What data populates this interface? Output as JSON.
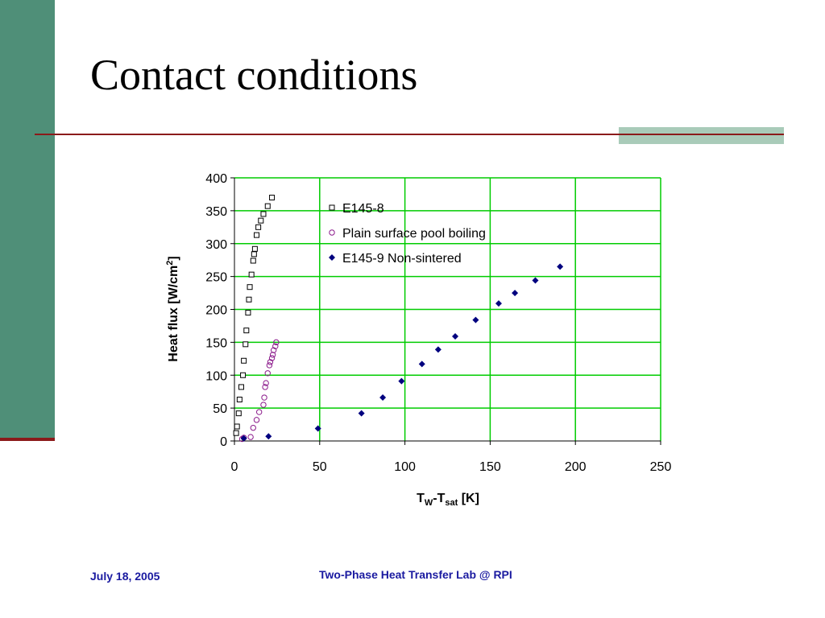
{
  "slide": {
    "title": "Contact conditions",
    "footer_date": "July 18, 2005",
    "footer_lab": "Two-Phase Heat Transfer Lab @ RPI"
  },
  "colors": {
    "sidebar": "#4f8f78",
    "accent_rule": "#8b1a1a",
    "accent_box": "#a9cbb9",
    "grid": "#00cc00",
    "footer_text": "#1a1aa0"
  },
  "chart_data": {
    "type": "scatter",
    "title": "",
    "xlabel": {
      "main": "T",
      "sub1": "W",
      "mid": "-T",
      "sub2": "sat",
      "tail": " [K]"
    },
    "ylabel": {
      "main": "Heat flux [W/cm",
      "sup": "2",
      "tail": "]"
    },
    "xlim": [
      0,
      250
    ],
    "ylim": [
      0,
      400
    ],
    "xticks": [
      0,
      50,
      100,
      150,
      200,
      250
    ],
    "yticks": [
      0,
      50,
      100,
      150,
      200,
      250,
      300,
      350,
      400
    ],
    "grid": true,
    "legend_position": "top-right",
    "series": [
      {
        "name": "E145-8",
        "marker": "square-open",
        "color": "#000000",
        "x": [
          1,
          1.5,
          2.5,
          3,
          4,
          5,
          5.5,
          6.5,
          7,
          8,
          8.5,
          9,
          10,
          11,
          11.5,
          12,
          13,
          14,
          15.5,
          17,
          19.5,
          22
        ],
        "y": [
          12,
          22,
          42,
          63,
          82,
          100,
          122,
          147,
          168,
          195,
          215,
          234,
          253,
          274,
          284,
          292,
          313,
          325,
          335,
          345,
          357,
          370
        ]
      },
      {
        "name": "Plain surface pool boiling",
        "marker": "circle-open",
        "color": "#8b1a8b",
        "x": [
          4.5,
          5.5,
          9.5,
          11,
          13,
          14.5,
          17,
          17.5,
          18,
          18.5,
          19.5,
          20.5,
          21,
          22,
          22.5,
          23,
          24,
          24.5
        ],
        "y": [
          3,
          5,
          6,
          20,
          32,
          44,
          55,
          66,
          82,
          88,
          103,
          115,
          120,
          126,
          131,
          138,
          144,
          150
        ]
      },
      {
        "name": "E145-9 Non-sintered",
        "marker": "diamond-filled",
        "color": "#00007f",
        "x": [
          5.5,
          20,
          49,
          74.5,
          87,
          98,
          110,
          119.5,
          129.5,
          141.5,
          155,
          164.5,
          176.5,
          191
        ],
        "y": [
          4,
          7,
          19,
          42,
          66,
          91,
          117,
          139,
          159,
          184,
          209,
          225,
          244,
          265
        ]
      }
    ]
  }
}
